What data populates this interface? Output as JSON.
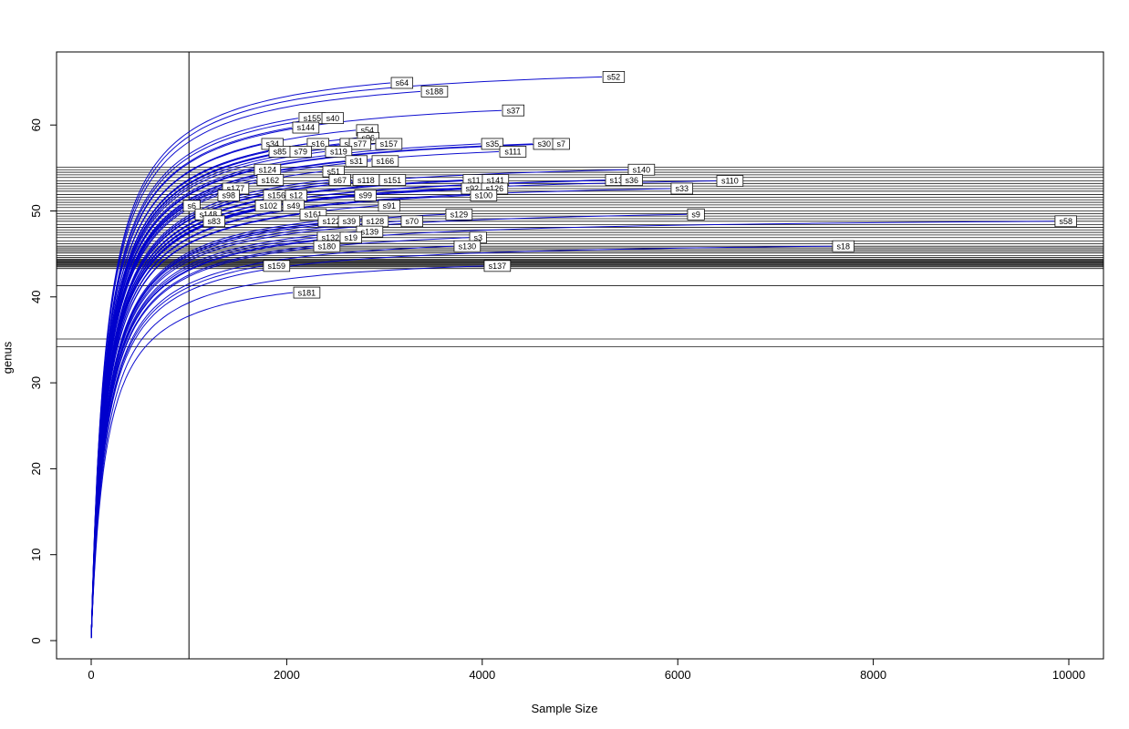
{
  "figure": {
    "xlabel": "Sample Size",
    "ylabel": "genus",
    "background": "#ffffff"
  },
  "chart_data": {
    "type": "line",
    "title": "",
    "xlabel": "Sample Size",
    "ylabel": "genus",
    "xlim": [
      -354,
      10354
    ],
    "ylim": [
      -2.1,
      68.5
    ],
    "x_ticks": [
      0,
      2000,
      4000,
      6000,
      8000,
      10000
    ],
    "y_ticks": [
      0,
      10,
      20,
      30,
      40,
      50,
      60
    ],
    "grid": false,
    "legend": "none",
    "curve_color": "#0000CC",
    "line_color": "#000000",
    "label_box_fill": "#ffffff",
    "label_box_stroke": "#000000",
    "vline_x": 1000,
    "hlines_y": [
      55.1,
      54.8,
      54.5,
      54.2,
      53.9,
      53.5,
      53.2,
      52.9,
      52.6,
      52.3,
      51.9,
      51.6,
      51.3,
      51.0,
      50.7,
      50.4,
      50.0,
      49.7,
      49.4,
      49.1,
      48.8,
      48.4,
      48.1,
      47.8,
      47.5,
      47.2,
      46.9,
      46.5,
      46.2,
      45.9,
      45.7,
      45.5,
      45.3,
      45.1,
      44.8,
      44.6,
      44.4,
      44.3,
      44.2,
      44.1,
      44.0,
      43.9,
      43.8,
      43.7,
      43.6,
      43.5,
      43.3,
      41.3,
      35.1,
      34.2
    ],
    "series": [
      {
        "label": "s52",
        "end_x": 5225,
        "end_y": 65.6
      },
      {
        "label": "s64",
        "end_x": 3060,
        "end_y": 64.9
      },
      {
        "label": "s188",
        "end_x": 3368,
        "end_y": 63.9
      },
      {
        "label": "s37",
        "end_x": 4198,
        "end_y": 61.7
      },
      {
        "label": "s155",
        "end_x": 2117,
        "end_y": 60.8
      },
      {
        "label": "s40",
        "end_x": 2351,
        "end_y": 60.8
      },
      {
        "label": "s144",
        "end_x": 2052,
        "end_y": 59.7
      },
      {
        "label": "s54",
        "end_x": 2705,
        "end_y": 59.4
      },
      {
        "label": "s96",
        "end_x": 2714,
        "end_y": 58.5
      },
      {
        "label": "s34",
        "end_x": 1735,
        "end_y": 57.8
      },
      {
        "label": "s16",
        "end_x": 2201,
        "end_y": 57.8
      },
      {
        "label": "s56",
        "end_x": 2537,
        "end_y": 57.8
      },
      {
        "label": "s77",
        "end_x": 2631,
        "end_y": 57.8
      },
      {
        "label": "s157",
        "end_x": 2901,
        "end_y": 57.8
      },
      {
        "label": "s35",
        "end_x": 3984,
        "end_y": 57.8
      },
      {
        "label": "s30",
        "end_x": 4515,
        "end_y": 57.8
      },
      {
        "label": "s7",
        "end_x": 4711,
        "end_y": 57.8
      },
      {
        "label": "s85",
        "end_x": 1810,
        "end_y": 56.9
      },
      {
        "label": "s79",
        "end_x": 2024,
        "end_y": 56.9
      },
      {
        "label": "s119",
        "end_x": 2388,
        "end_y": 56.9
      },
      {
        "label": "s111",
        "end_x": 4170,
        "end_y": 56.9
      },
      {
        "label": "s31",
        "end_x": 2593,
        "end_y": 55.8
      },
      {
        "label": "s166",
        "end_x": 2864,
        "end_y": 55.8
      },
      {
        "label": "s124",
        "end_x": 1660,
        "end_y": 54.8
      },
      {
        "label": "s140",
        "end_x": 5485,
        "end_y": 54.8
      },
      {
        "label": "s51",
        "end_x": 2360,
        "end_y": 54.6
      },
      {
        "label": "s162",
        "end_x": 1688,
        "end_y": 53.6
      },
      {
        "label": "s67",
        "end_x": 2425,
        "end_y": 53.6
      },
      {
        "label": "s118",
        "end_x": 2668,
        "end_y": 53.6
      },
      {
        "label": "s151",
        "end_x": 2938,
        "end_y": 53.6
      },
      {
        "label": "s11",
        "end_x": 3796,
        "end_y": 53.6
      },
      {
        "label": "s141",
        "end_x": 3992,
        "end_y": 53.6
      },
      {
        "label": "s13",
        "end_x": 5252,
        "end_y": 53.6
      },
      {
        "label": "s36",
        "end_x": 5410,
        "end_y": 53.6
      },
      {
        "label": "s110",
        "end_x": 6390,
        "end_y": 53.5
      },
      {
        "label": "s177",
        "end_x": 1334,
        "end_y": 52.6
      },
      {
        "label": "s92",
        "end_x": 3778,
        "end_y": 52.6
      },
      {
        "label": "s126",
        "end_x": 3983,
        "end_y": 52.6
      },
      {
        "label": "s33",
        "end_x": 5923,
        "end_y": 52.6
      },
      {
        "label": "s98",
        "end_x": 1287,
        "end_y": 51.8
      },
      {
        "label": "s156",
        "end_x": 1753,
        "end_y": 51.8
      },
      {
        "label": "s12",
        "end_x": 1977,
        "end_y": 51.8
      },
      {
        "label": "s99",
        "end_x": 2686,
        "end_y": 51.8
      },
      {
        "label": "s100",
        "end_x": 3871,
        "end_y": 51.8
      },
      {
        "label": "s6",
        "end_x": 933,
        "end_y": 50.6
      },
      {
        "label": "s102",
        "end_x": 1670,
        "end_y": 50.6
      },
      {
        "label": "s49",
        "end_x": 1950,
        "end_y": 50.6
      },
      {
        "label": "s91",
        "end_x": 2929,
        "end_y": 50.6
      },
      {
        "label": "s148",
        "end_x": 1054,
        "end_y": 49.6
      },
      {
        "label": "s161",
        "end_x": 2127,
        "end_y": 49.6
      },
      {
        "label": "s129",
        "end_x": 3619,
        "end_y": 49.6
      },
      {
        "label": "s9",
        "end_x": 6091,
        "end_y": 49.6
      },
      {
        "label": "s83",
        "end_x": 1138,
        "end_y": 48.8
      },
      {
        "label": "s122",
        "end_x": 2313,
        "end_y": 48.8
      },
      {
        "label": "s39",
        "end_x": 2519,
        "end_y": 48.8
      },
      {
        "label": "s128",
        "end_x": 2761,
        "end_y": 48.8
      },
      {
        "label": "s70",
        "end_x": 3162,
        "end_y": 48.8
      },
      {
        "label": "s58",
        "end_x": 9850,
        "end_y": 48.8
      },
      {
        "label": "s139",
        "end_x": 2705,
        "end_y": 47.6
      },
      {
        "label": "s132",
        "end_x": 2304,
        "end_y": 46.9
      },
      {
        "label": "s19",
        "end_x": 2537,
        "end_y": 46.9
      },
      {
        "label": "s3",
        "end_x": 3862,
        "end_y": 46.9
      },
      {
        "label": "s180",
        "end_x": 2267,
        "end_y": 45.9
      },
      {
        "label": "s130",
        "end_x": 3703,
        "end_y": 45.9
      },
      {
        "label": "s18",
        "end_x": 7574,
        "end_y": 45.9
      },
      {
        "label": "s159",
        "end_x": 1753,
        "end_y": 43.6
      },
      {
        "label": "s137",
        "end_x": 4011,
        "end_y": 43.6
      },
      {
        "label": "s181",
        "end_x": 2062,
        "end_y": 40.5
      }
    ]
  }
}
